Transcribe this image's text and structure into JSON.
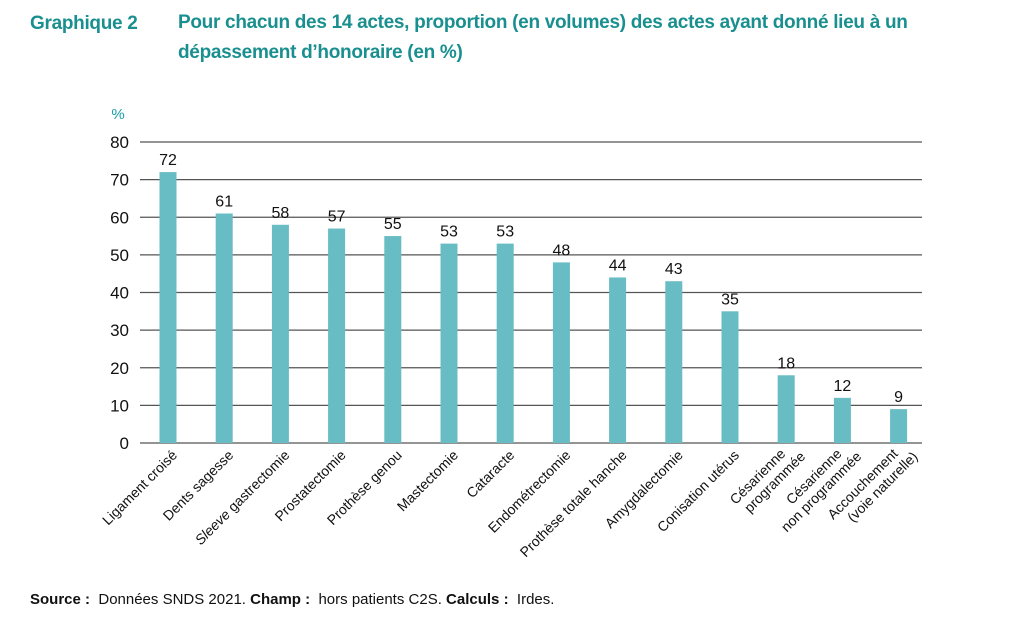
{
  "header": {
    "label": "Graphique 2",
    "title": "Pour chacun des 14 actes, proportion (en volumes) des actes ayant donné lieu à un dépassement d’honoraire (en %)"
  },
  "footer": {
    "source_label": "Source :",
    "source_value": "Données SNDS 2021.",
    "champ_label": "Champ :",
    "champ_value": "hors patients C2S.",
    "calculs_label": "Calculs :",
    "calculs_value": "Irdes."
  },
  "colors": {
    "bar": "#68bcc4",
    "title": "#1a8f8f",
    "unit": "#1a9fa8",
    "grid": "#555555"
  },
  "chart_data": {
    "type": "bar",
    "title": "Pour chacun des 14 actes, proportion (en volumes) des actes ayant donné lieu à un dépassement d’honoraire (en %)",
    "xlabel": "",
    "ylabel": "%",
    "ylim": [
      0,
      80
    ],
    "yticks": [
      0,
      10,
      20,
      30,
      40,
      50,
      60,
      70,
      80
    ],
    "grid": true,
    "legend": "none",
    "categories": [
      [
        "Ligament croisé"
      ],
      [
        "Dents sagesse"
      ],
      [
        "Sleeve gastrectomie"
      ],
      [
        "Prostatectomie"
      ],
      [
        "Prothèse genou"
      ],
      [
        "Mastectomie"
      ],
      [
        "Cataracte"
      ],
      [
        "Endométrectomie"
      ],
      [
        "Prothèse totale hanche"
      ],
      [
        "Amygdalectomie"
      ],
      [
        "Conisation utérus"
      ],
      [
        "Césarienne",
        "programmée"
      ],
      [
        "Césarienne",
        "non programmée"
      ],
      [
        "Accouchement",
        "(voie naturelle)"
      ]
    ],
    "values": [
      72,
      61,
      58,
      57,
      55,
      53,
      53,
      48,
      44,
      43,
      35,
      18,
      12,
      9
    ]
  }
}
